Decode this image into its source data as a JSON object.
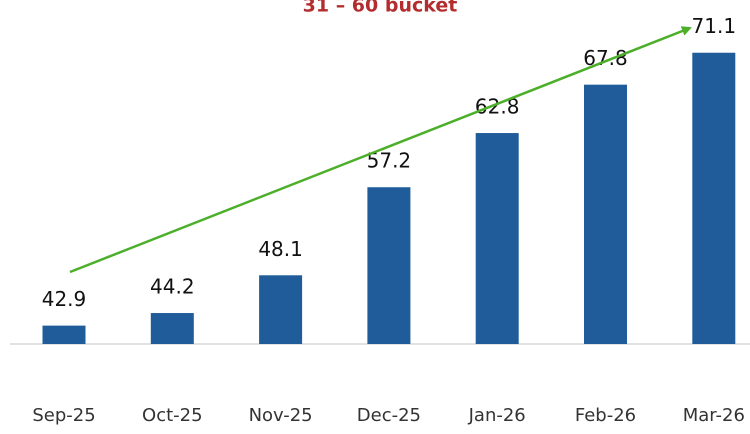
{
  "chart_data": {
    "type": "bar",
    "title": "31 – 60 bucket",
    "categories": [
      "Sep-25",
      "Oct-25",
      "Nov-25",
      "Dec-25",
      "Jan-26",
      "Feb-26",
      "Mar-26"
    ],
    "values": [
      42.9,
      44.2,
      48.1,
      57.2,
      62.8,
      67.8,
      71.1
    ],
    "color": "#1f5c99",
    "ylim": [
      41,
      75
    ]
  }
}
